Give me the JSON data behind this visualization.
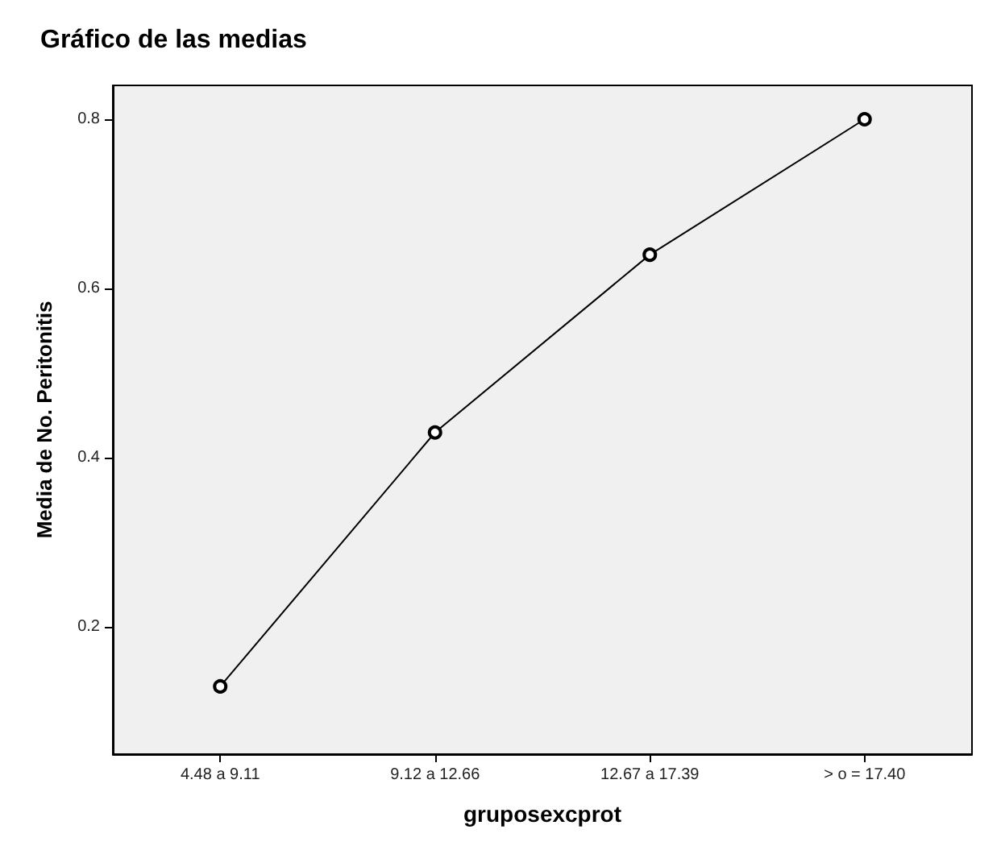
{
  "chart_data": {
    "type": "line",
    "title": "Gráfico de las medias",
    "xlabel": "gruposexcprot",
    "ylabel": "Media de No. Peritonitis",
    "categories": [
      "4.48 a 9.11",
      "9.12 a 12.66",
      "12.67 a 17.39",
      "> o = 17.40"
    ],
    "series": [
      {
        "color": "#000000",
        "values": [
          0.13,
          0.43,
          0.64,
          0.8
        ]
      }
    ],
    "ylim": [
      0.05,
      0.84
    ],
    "yticks": [
      0.2,
      0.4,
      0.6,
      0.8
    ],
    "grid": false,
    "marker": "circle",
    "line_style": "solid"
  }
}
